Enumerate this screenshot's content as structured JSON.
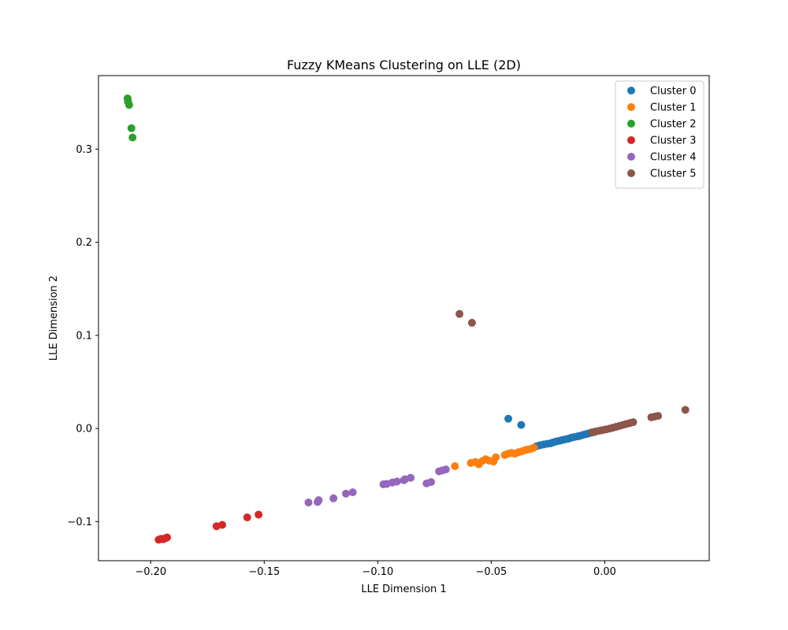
{
  "chart_data": {
    "type": "scatter",
    "title": "Fuzzy KMeans Clustering on LLE (2D)",
    "xlabel": "LLE Dimension 1",
    "ylabel": "LLE Dimension 2",
    "xlim": [
      -0.223,
      0.046
    ],
    "ylim": [
      -0.142,
      0.379
    ],
    "xticks": [
      -0.2,
      -0.15,
      -0.1,
      -0.05,
      0.0
    ],
    "xtick_labels": [
      "−0.20",
      "−0.15",
      "−0.10",
      "−0.05",
      "0.00"
    ],
    "yticks": [
      -0.1,
      0.0,
      0.1,
      0.2,
      0.3
    ],
    "ytick_labels": [
      "−0.1",
      "0.0",
      "0.1",
      "0.2",
      "0.3"
    ],
    "grid": false,
    "legend_position": "top-right",
    "series": [
      {
        "name": "Cluster 0",
        "color": "#1f77b4",
        "points": [
          [
            -0.0425,
            0.0105
          ],
          [
            -0.0368,
            0.0038
          ],
          [
            -0.03,
            -0.019
          ],
          [
            -0.0285,
            -0.018
          ],
          [
            -0.027,
            -0.0172
          ],
          [
            -0.0255,
            -0.0165
          ],
          [
            -0.024,
            -0.016
          ],
          [
            -0.0228,
            -0.015
          ],
          [
            -0.0215,
            -0.014
          ],
          [
            -0.02,
            -0.0132
          ],
          [
            -0.0188,
            -0.0125
          ],
          [
            -0.0175,
            -0.0118
          ],
          [
            -0.016,
            -0.011
          ],
          [
            -0.0148,
            -0.01
          ],
          [
            -0.0135,
            -0.0092
          ],
          [
            -0.012,
            -0.0085
          ],
          [
            -0.0108,
            -0.0078
          ],
          [
            -0.0095,
            -0.0068
          ],
          [
            -0.0082,
            -0.006
          ],
          [
            -0.007,
            -0.0052
          ],
          [
            -0.0058,
            -0.0045
          ],
          [
            -0.0045,
            -0.0038
          ]
        ]
      },
      {
        "name": "Cluster 1",
        "color": "#ff7f0e",
        "points": [
          [
            -0.066,
            -0.0405
          ],
          [
            -0.059,
            -0.037
          ],
          [
            -0.057,
            -0.036
          ],
          [
            -0.0555,
            -0.0385
          ],
          [
            -0.054,
            -0.035
          ],
          [
            -0.0525,
            -0.033
          ],
          [
            -0.051,
            -0.0345
          ],
          [
            -0.049,
            -0.0355
          ],
          [
            -0.048,
            -0.031
          ],
          [
            -0.044,
            -0.0285
          ],
          [
            -0.0425,
            -0.027
          ],
          [
            -0.041,
            -0.0262
          ],
          [
            -0.0395,
            -0.027
          ],
          [
            -0.038,
            -0.0255
          ],
          [
            -0.0365,
            -0.0245
          ],
          [
            -0.035,
            -0.0232
          ],
          [
            -0.0338,
            -0.0225
          ],
          [
            -0.0325,
            -0.0218
          ],
          [
            -0.0312,
            -0.0205
          ]
        ]
      },
      {
        "name": "Cluster 2",
        "color": "#2ca02c",
        "points": [
          [
            -0.2102,
            0.3545
          ],
          [
            -0.21,
            0.351
          ],
          [
            -0.2095,
            0.3475
          ],
          [
            -0.2085,
            0.3225
          ],
          [
            -0.208,
            0.3125
          ]
        ]
      },
      {
        "name": "Cluster 3",
        "color": "#d62728",
        "points": [
          [
            -0.1965,
            -0.1195
          ],
          [
            -0.1955,
            -0.1185
          ],
          [
            -0.1945,
            -0.119
          ],
          [
            -0.1935,
            -0.1178
          ],
          [
            -0.1928,
            -0.117
          ],
          [
            -0.171,
            -0.105
          ],
          [
            -0.1685,
            -0.1035
          ],
          [
            -0.1575,
            -0.0955
          ],
          [
            -0.1525,
            -0.0925
          ]
        ]
      },
      {
        "name": "Cluster 4",
        "color": "#9467bd",
        "points": [
          [
            -0.1305,
            -0.0795
          ],
          [
            -0.1265,
            -0.079
          ],
          [
            -0.126,
            -0.077
          ],
          [
            -0.1195,
            -0.075
          ],
          [
            -0.114,
            -0.07
          ],
          [
            -0.111,
            -0.0685
          ],
          [
            -0.0975,
            -0.06
          ],
          [
            -0.096,
            -0.0595
          ],
          [
            -0.0935,
            -0.058
          ],
          [
            -0.0915,
            -0.057
          ],
          [
            -0.0885,
            -0.0555
          ],
          [
            -0.088,
            -0.0545
          ],
          [
            -0.0855,
            -0.053
          ],
          [
            -0.0785,
            -0.059
          ],
          [
            -0.0765,
            -0.0575
          ],
          [
            -0.073,
            -0.046
          ],
          [
            -0.0715,
            -0.045
          ],
          [
            -0.07,
            -0.044
          ]
        ]
      },
      {
        "name": "Cluster 5",
        "color": "#8c564b",
        "points": [
          [
            -0.064,
            0.123
          ],
          [
            -0.0585,
            0.1135
          ],
          [
            -0.0055,
            -0.004
          ],
          [
            -0.004,
            -0.0032
          ],
          [
            -0.0025,
            -0.0025
          ],
          [
            -0.001,
            -0.0018
          ],
          [
            0.0005,
            -0.001
          ],
          [
            0.002,
            -0.0002
          ],
          [
            0.0035,
            0.0008
          ],
          [
            0.005,
            0.0018
          ],
          [
            0.0065,
            0.0028
          ],
          [
            0.008,
            0.0038
          ],
          [
            0.0095,
            0.0048
          ],
          [
            0.011,
            0.0058
          ],
          [
            0.0125,
            0.0068
          ],
          [
            0.0205,
            0.012
          ],
          [
            0.022,
            0.0128
          ],
          [
            0.0235,
            0.0135
          ],
          [
            0.0355,
            0.02
          ]
        ]
      }
    ]
  }
}
